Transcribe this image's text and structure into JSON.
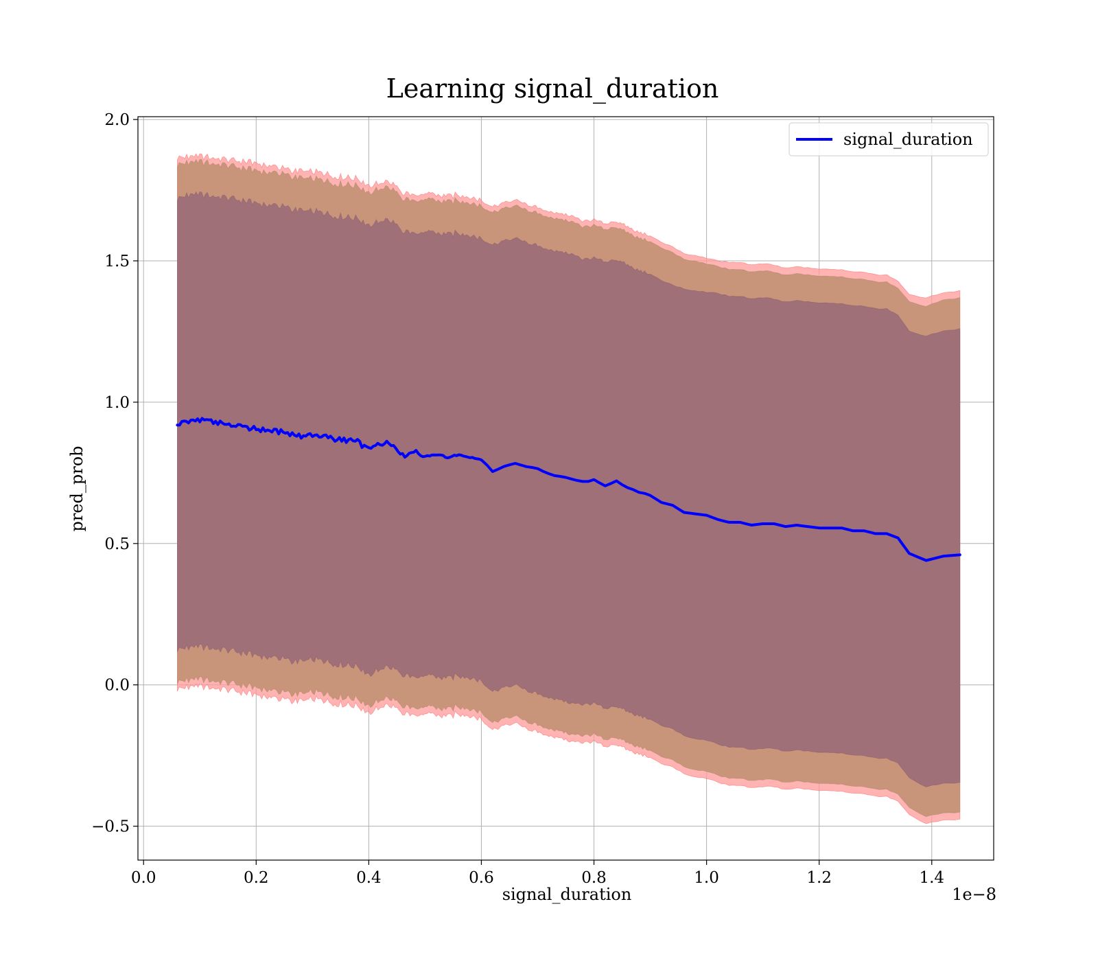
{
  "chart_data": {
    "type": "line",
    "title": "Learning signal_duration",
    "xlabel": "signal_duration",
    "ylabel": "pred_prob",
    "x_offset_label": "1e−8",
    "xlim": [
      -0.01,
      1.51
    ],
    "ylim": [
      -0.62,
      2.01
    ],
    "xticks": [
      0.0,
      0.2,
      0.4,
      0.6,
      0.8,
      1.0,
      1.2,
      1.4
    ],
    "xtick_labels": [
      "0.0",
      "0.2",
      "0.4",
      "0.6",
      "0.8",
      "1.0",
      "1.2",
      "1.4"
    ],
    "yticks": [
      -0.5,
      0.0,
      0.5,
      1.0,
      1.5,
      2.0
    ],
    "ytick_labels": [
      "−0.5",
      "0.0",
      "0.5",
      "1.0",
      "1.5",
      "2.0"
    ],
    "grid": true,
    "legend_position": "top-right",
    "colors": {
      "line": "#0000ff",
      "outer_band": "#ff9999",
      "middle_band": "#c8957a",
      "inner_band": "#a07079",
      "grid": "#b0b0b0"
    },
    "series": [
      {
        "name": "signal_duration",
        "x": [
          0.06,
          0.08,
          0.1,
          0.12,
          0.14,
          0.16,
          0.18,
          0.2,
          0.22,
          0.24,
          0.26,
          0.28,
          0.3,
          0.32,
          0.34,
          0.36,
          0.38,
          0.4,
          0.42,
          0.44,
          0.46,
          0.48,
          0.5,
          0.52,
          0.54,
          0.56,
          0.58,
          0.6,
          0.62,
          0.64,
          0.66,
          0.68,
          0.7,
          0.72,
          0.74,
          0.76,
          0.78,
          0.8,
          0.82,
          0.84,
          0.86,
          0.88,
          0.9,
          0.92,
          0.94,
          0.96,
          0.98,
          1.0,
          1.02,
          1.04,
          1.06,
          1.08,
          1.1,
          1.12,
          1.14,
          1.16,
          1.18,
          1.2,
          1.22,
          1.24,
          1.26,
          1.28,
          1.3,
          1.32,
          1.34,
          1.36,
          1.39,
          1.42,
          1.45
        ],
        "y": [
          0.92,
          0.935,
          0.935,
          0.93,
          0.925,
          0.92,
          0.91,
          0.905,
          0.9,
          0.895,
          0.89,
          0.88,
          0.885,
          0.88,
          0.87,
          0.865,
          0.86,
          0.83,
          0.855,
          0.855,
          0.81,
          0.825,
          0.81,
          0.815,
          0.805,
          0.815,
          0.805,
          0.795,
          0.755,
          0.77,
          0.785,
          0.77,
          0.765,
          0.745,
          0.735,
          0.73,
          0.72,
          0.725,
          0.705,
          0.72,
          0.7,
          0.68,
          0.67,
          0.645,
          0.635,
          0.61,
          0.605,
          0.6,
          0.585,
          0.575,
          0.575,
          0.565,
          0.57,
          0.57,
          0.56,
          0.565,
          0.56,
          0.555,
          0.555,
          0.555,
          0.545,
          0.545,
          0.535,
          0.535,
          0.52,
          0.465,
          0.44,
          0.455,
          0.46
        ]
      }
    ],
    "bands": [
      {
        "label": "outer",
        "upper": [
          1.865,
          1.87,
          1.87,
          1.865,
          1.86,
          1.855,
          1.85,
          1.845,
          1.84,
          1.83,
          1.82,
          1.815,
          1.815,
          1.81,
          1.8,
          1.795,
          1.79,
          1.765,
          1.78,
          1.78,
          1.73,
          1.745,
          1.73,
          1.735,
          1.725,
          1.735,
          1.725,
          1.715,
          1.69,
          1.705,
          1.715,
          1.7,
          1.69,
          1.675,
          1.665,
          1.66,
          1.64,
          1.645,
          1.63,
          1.64,
          1.62,
          1.6,
          1.59,
          1.565,
          1.55,
          1.525,
          1.52,
          1.51,
          1.5,
          1.495,
          1.495,
          1.485,
          1.49,
          1.485,
          1.475,
          1.48,
          1.475,
          1.47,
          1.47,
          1.47,
          1.46,
          1.46,
          1.45,
          1.45,
          1.43,
          1.38,
          1.37,
          1.385,
          1.395
        ],
        "lower": [
          -0.015,
          -0.005,
          -0.005,
          -0.01,
          -0.015,
          -0.02,
          -0.03,
          -0.035,
          -0.04,
          -0.05,
          -0.055,
          -0.06,
          -0.05,
          -0.055,
          -0.065,
          -0.07,
          -0.075,
          -0.1,
          -0.075,
          -0.07,
          -0.11,
          -0.095,
          -0.11,
          -0.105,
          -0.115,
          -0.1,
          -0.11,
          -0.12,
          -0.16,
          -0.145,
          -0.135,
          -0.155,
          -0.165,
          -0.18,
          -0.19,
          -0.2,
          -0.205,
          -0.2,
          -0.22,
          -0.21,
          -0.23,
          -0.245,
          -0.255,
          -0.28,
          -0.29,
          -0.315,
          -0.325,
          -0.33,
          -0.345,
          -0.355,
          -0.355,
          -0.365,
          -0.36,
          -0.36,
          -0.37,
          -0.365,
          -0.37,
          -0.375,
          -0.375,
          -0.375,
          -0.385,
          -0.385,
          -0.395,
          -0.395,
          -0.41,
          -0.46,
          -0.49,
          -0.48,
          -0.475
        ]
      },
      {
        "label": "middle",
        "upper": [
          1.84,
          1.85,
          1.85,
          1.845,
          1.84,
          1.835,
          1.825,
          1.82,
          1.815,
          1.81,
          1.8,
          1.79,
          1.79,
          1.785,
          1.775,
          1.77,
          1.765,
          1.74,
          1.76,
          1.76,
          1.71,
          1.725,
          1.71,
          1.715,
          1.705,
          1.715,
          1.705,
          1.695,
          1.67,
          1.685,
          1.695,
          1.68,
          1.67,
          1.655,
          1.645,
          1.64,
          1.62,
          1.625,
          1.61,
          1.62,
          1.6,
          1.58,
          1.57,
          1.545,
          1.53,
          1.505,
          1.5,
          1.49,
          1.48,
          1.47,
          1.47,
          1.46,
          1.465,
          1.46,
          1.45,
          1.455,
          1.45,
          1.445,
          1.445,
          1.445,
          1.435,
          1.435,
          1.425,
          1.425,
          1.405,
          1.355,
          1.34,
          1.36,
          1.37
        ],
        "lower": [
          0.01,
          0.02,
          0.02,
          0.015,
          0.01,
          0.005,
          -0.005,
          -0.01,
          -0.015,
          -0.025,
          -0.03,
          -0.035,
          -0.025,
          -0.03,
          -0.04,
          -0.045,
          -0.05,
          -0.075,
          -0.05,
          -0.045,
          -0.085,
          -0.07,
          -0.085,
          -0.08,
          -0.09,
          -0.075,
          -0.085,
          -0.095,
          -0.135,
          -0.12,
          -0.11,
          -0.13,
          -0.14,
          -0.155,
          -0.165,
          -0.175,
          -0.18,
          -0.175,
          -0.195,
          -0.185,
          -0.205,
          -0.22,
          -0.23,
          -0.255,
          -0.265,
          -0.29,
          -0.3,
          -0.305,
          -0.32,
          -0.33,
          -0.33,
          -0.34,
          -0.335,
          -0.335,
          -0.345,
          -0.34,
          -0.345,
          -0.35,
          -0.35,
          -0.35,
          -0.36,
          -0.36,
          -0.37,
          -0.37,
          -0.385,
          -0.435,
          -0.465,
          -0.455,
          -0.45
        ]
      },
      {
        "label": "inner",
        "upper": [
          1.72,
          1.735,
          1.735,
          1.73,
          1.725,
          1.72,
          1.71,
          1.705,
          1.7,
          1.695,
          1.685,
          1.675,
          1.675,
          1.67,
          1.66,
          1.655,
          1.65,
          1.625,
          1.645,
          1.645,
          1.595,
          1.61,
          1.595,
          1.6,
          1.59,
          1.6,
          1.59,
          1.58,
          1.555,
          1.57,
          1.58,
          1.565,
          1.555,
          1.54,
          1.53,
          1.525,
          1.505,
          1.51,
          1.495,
          1.505,
          1.485,
          1.465,
          1.455,
          1.43,
          1.415,
          1.4,
          1.395,
          1.39,
          1.385,
          1.375,
          1.375,
          1.365,
          1.37,
          1.365,
          1.355,
          1.36,
          1.355,
          1.35,
          1.35,
          1.35,
          1.34,
          1.34,
          1.33,
          1.33,
          1.31,
          1.25,
          1.235,
          1.25,
          1.26
        ],
        "lower": [
          0.125,
          0.135,
          0.135,
          0.13,
          0.125,
          0.12,
          0.11,
          0.105,
          0.1,
          0.095,
          0.085,
          0.08,
          0.09,
          0.085,
          0.075,
          0.07,
          0.065,
          0.035,
          0.06,
          0.065,
          0.025,
          0.04,
          0.025,
          0.03,
          0.02,
          0.035,
          0.025,
          0.015,
          -0.025,
          -0.01,
          0.0,
          -0.02,
          -0.03,
          -0.045,
          -0.055,
          -0.065,
          -0.07,
          -0.065,
          -0.085,
          -0.075,
          -0.095,
          -0.11,
          -0.12,
          -0.145,
          -0.155,
          -0.18,
          -0.19,
          -0.195,
          -0.21,
          -0.22,
          -0.22,
          -0.23,
          -0.225,
          -0.225,
          -0.235,
          -0.23,
          -0.235,
          -0.24,
          -0.24,
          -0.24,
          -0.25,
          -0.25,
          -0.26,
          -0.26,
          -0.275,
          -0.33,
          -0.36,
          -0.35,
          -0.345
        ]
      }
    ]
  }
}
